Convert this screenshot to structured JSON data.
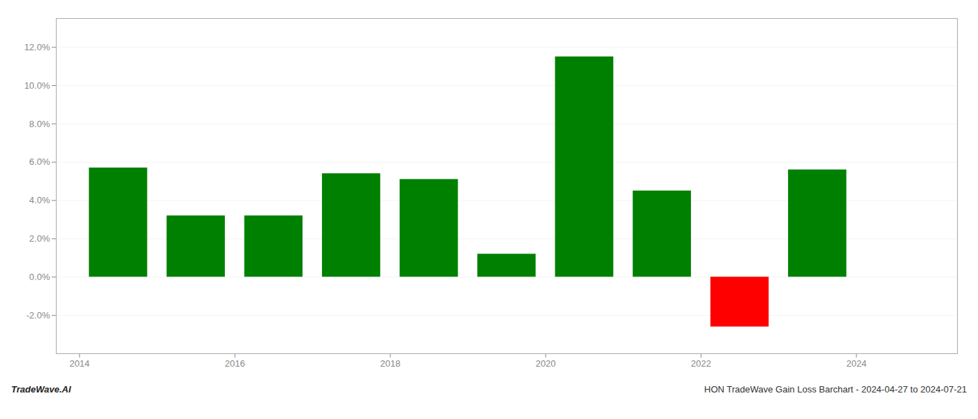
{
  "chart_data": {
    "type": "bar",
    "x": [
      2014,
      2015,
      2016,
      2017,
      2018,
      2019,
      2020,
      2021,
      2022,
      2023
    ],
    "values": [
      0.057,
      0.032,
      0.032,
      0.054,
      0.051,
      0.012,
      0.115,
      0.045,
      -0.026,
      0.056
    ],
    "colors": [
      "#008000",
      "#008000",
      "#008000",
      "#008000",
      "#008000",
      "#008000",
      "#008000",
      "#008000",
      "#ff0000",
      "#008000"
    ],
    "ylim": [
      -0.04,
      0.135
    ],
    "yticks": [
      {
        "value": -0.02,
        "label": "-2.0%"
      },
      {
        "value": 0.0,
        "label": "0.0%"
      },
      {
        "value": 0.02,
        "label": "2.0%"
      },
      {
        "value": 0.04,
        "label": "4.0%"
      },
      {
        "value": 0.06,
        "label": "6.0%"
      },
      {
        "value": 0.08,
        "label": "8.0%"
      },
      {
        "value": 0.1,
        "label": "10.0%"
      },
      {
        "value": 0.12,
        "label": "12.0%"
      }
    ],
    "xlim": [
      2013.2,
      2024.8
    ],
    "xticks": [
      {
        "value": 2013.5,
        "label": "2014"
      },
      {
        "value": 2015.5,
        "label": "2016"
      },
      {
        "value": 2017.5,
        "label": "2018"
      },
      {
        "value": 2019.5,
        "label": "2020"
      },
      {
        "value": 2021.5,
        "label": "2022"
      },
      {
        "value": 2023.5,
        "label": "2024"
      }
    ],
    "grid": true,
    "annotations": [
      "TradeWave.AI",
      "HON TradeWave Gain Loss Barchart - 2024-04-27 to 2024-07-21"
    ]
  }
}
